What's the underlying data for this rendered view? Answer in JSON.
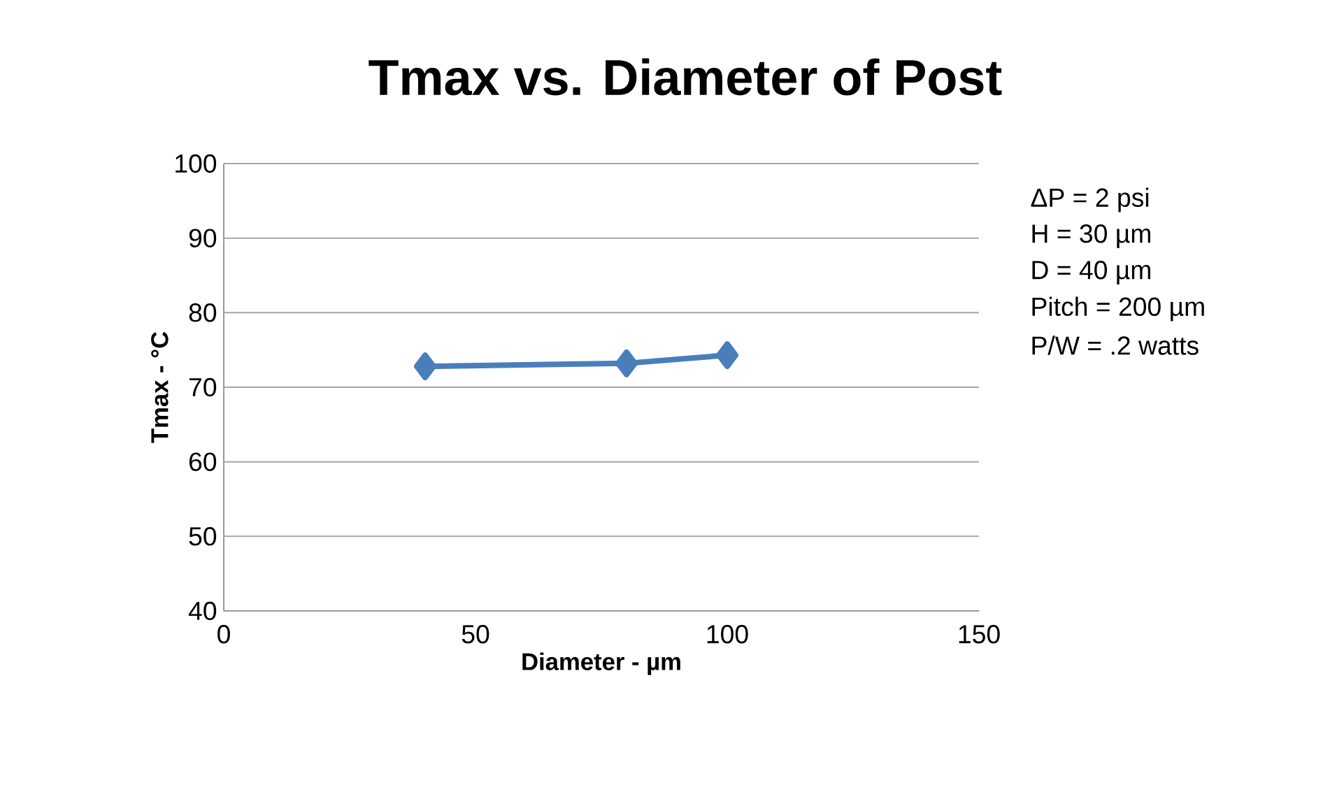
{
  "chart_data": {
    "type": "line",
    "title": "Tmax vs. Diameter of Post",
    "xlabel": "Diameter - µm",
    "ylabel": "Tmax - °C",
    "x": [
      40,
      80,
      100
    ],
    "series": [
      {
        "color": "#4a7ebb",
        "values": [
          72.8,
          73.2,
          74.3
        ]
      }
    ],
    "xlim": [
      0,
      150
    ],
    "xticks": [
      0,
      50,
      100,
      150
    ],
    "ylim": [
      40,
      100
    ],
    "yticks": [
      40,
      50,
      60,
      70,
      80,
      90,
      100
    ],
    "grid": "y",
    "marker": "diamond",
    "line_style": "solid",
    "annotations": [
      "ΔP = 2 psi",
      "H = 30 µm",
      "D = 40 µm",
      "Pitch = 200 µm",
      "P/W = .2 watts"
    ]
  }
}
